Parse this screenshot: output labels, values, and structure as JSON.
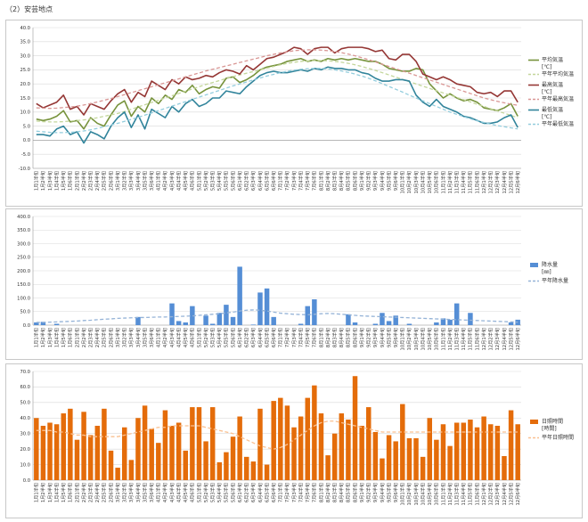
{
  "page": {
    "title": "（2）安芸地点"
  },
  "weeks": [
    "1月1半旬",
    "1月2半旬",
    "1月3半旬",
    "1月4半旬",
    "1月5半旬",
    "1月6半旬",
    "2月1半旬",
    "2月2半旬",
    "2月3半旬",
    "2月4半旬",
    "2月5半旬",
    "2月6半旬",
    "3月1半旬",
    "3月2半旬",
    "3月3半旬",
    "3月4半旬",
    "3月5半旬",
    "3月6半旬",
    "4月1半旬",
    "4月2半旬",
    "4月3半旬",
    "4月4半旬",
    "4月5半旬",
    "4月6半旬",
    "5月1半旬",
    "5月2半旬",
    "5月3半旬",
    "5月4半旬",
    "5月5半旬",
    "5月6半旬",
    "6月1半旬",
    "6月2半旬",
    "6月3半旬",
    "6月4半旬",
    "6月5半旬",
    "6月6半旬",
    "7月1半旬",
    "7月2半旬",
    "7月3半旬",
    "7月4半旬",
    "7月5半旬",
    "7月6半旬",
    "8月1半旬",
    "8月2半旬",
    "8月3半旬",
    "8月4半旬",
    "8月5半旬",
    "8月6半旬",
    "9月1半旬",
    "9月2半旬",
    "9月3半旬",
    "9月4半旬",
    "9月5半旬",
    "9月6半旬",
    "10月1半旬",
    "10月2半旬",
    "10月3半旬",
    "10月4半旬",
    "10月5半旬",
    "10月6半旬",
    "11月1半旬",
    "11月2半旬",
    "11月3半旬",
    "11月4半旬",
    "11月5半旬",
    "11月6半旬",
    "12月1半旬",
    "12月2半旬",
    "12月3半旬",
    "12月4半旬",
    "12月5半旬",
    "12月6半旬"
  ],
  "chart_data": [
    {
      "type": "line",
      "title": "",
      "ylim": [
        -10,
        40
      ],
      "yticks": [
        "-10.0",
        "-5.0",
        "0.0",
        "5.0",
        "10.0",
        "15.0",
        "20.0",
        "25.0",
        "30.0",
        "35.0",
        "40.0"
      ],
      "grid": true,
      "legend": "right",
      "series": [
        {
          "name": "平均気温",
          "unit": "[℃]",
          "color": "#77933c",
          "dashed": false,
          "values": [
            7.5,
            7,
            7.5,
            8.5,
            10.5,
            6.5,
            7,
            4,
            8,
            6,
            5,
            9,
            12.5,
            14,
            8.5,
            12,
            10,
            15,
            13,
            16,
            14.5,
            18,
            17,
            19.5,
            16.5,
            18,
            19,
            18.5,
            22,
            22.5,
            20.5,
            21.5,
            23,
            25,
            26,
            26.5,
            27,
            28,
            28.5,
            29,
            28,
            28.5,
            28,
            29,
            28.5,
            29,
            28.5,
            29,
            28.5,
            28,
            28,
            27,
            25.5,
            25,
            24.5,
            24.5,
            25.5,
            25,
            20,
            17.5,
            15,
            16.5,
            15,
            14,
            14.5,
            13.5,
            11.5,
            11,
            10.5,
            11.5,
            13,
            8.5
          ]
        },
        {
          "name": "平年平均気温",
          "unit": "",
          "color": "#c3d69b",
          "dashed": true,
          "values": [
            6.8,
            6.6,
            6.5,
            6.5,
            6.6,
            6.8,
            7,
            7.2,
            7.5,
            8,
            8.5,
            9,
            9.5,
            10.2,
            11,
            11.8,
            12.6,
            13.4,
            14.2,
            15,
            15.8,
            16.6,
            17.4,
            18.2,
            19,
            19.8,
            20.5,
            21.2,
            21.9,
            22.6,
            23.2,
            23.8,
            24.4,
            25,
            25.6,
            26.2,
            26.8,
            27.3,
            27.7,
            28,
            28.2,
            28.3,
            28.3,
            28.2,
            28,
            27.7,
            27.3,
            26.8,
            26.2,
            25.5,
            24.8,
            24,
            23.2,
            22.4,
            21.6,
            20.8,
            20,
            19.2,
            18.4,
            17.6,
            16.8,
            16,
            15.2,
            14.4,
            13.6,
            12.8,
            12,
            11.2,
            10.4,
            9.6,
            8.8,
            8
          ]
        },
        {
          "name": "最高気温",
          "unit": "[℃]",
          "color": "#953735",
          "dashed": false,
          "values": [
            13,
            11.5,
            12.5,
            13.5,
            16,
            11,
            12,
            9,
            13,
            12,
            11,
            14,
            16.5,
            18,
            13.5,
            17,
            15.5,
            21,
            19.5,
            18,
            21.5,
            20,
            22.5,
            21.5,
            22,
            23,
            22.5,
            24,
            25,
            24.5,
            23.5,
            26.5,
            25,
            27,
            29,
            29.5,
            30.5,
            31.5,
            33,
            32.5,
            30.5,
            32.5,
            33,
            33,
            31,
            32.5,
            33,
            33,
            33,
            32.5,
            31.5,
            32,
            29,
            28.5,
            30.5,
            30.5,
            28,
            23.5,
            22.5,
            21.5,
            22.5,
            21.5,
            20,
            19.5,
            19,
            17,
            16.5,
            17,
            15.5,
            17.5,
            17.5,
            13.5
          ]
        },
        {
          "name": "平年最高気温",
          "unit": "",
          "color": "#d99694",
          "dashed": true,
          "values": [
            11.5,
            11.4,
            11.3,
            11.4,
            11.6,
            11.8,
            12.1,
            12.5,
            13,
            13.6,
            14.2,
            14.8,
            15.5,
            16.2,
            16.9,
            17.6,
            18.3,
            19,
            19.7,
            20.4,
            21.1,
            21.8,
            22.5,
            23.2,
            23.9,
            24.6,
            25.2,
            25.8,
            26.4,
            27,
            27.6,
            28.2,
            28.8,
            29.4,
            30,
            30.5,
            31,
            31.4,
            31.8,
            32,
            32.1,
            32.1,
            32,
            31.8,
            31.5,
            31.1,
            30.6,
            30,
            29.3,
            28.6,
            27.8,
            27,
            26.2,
            25.4,
            24.6,
            23.8,
            23,
            22.2,
            21.4,
            20.6,
            19.8,
            19,
            18.2,
            17.4,
            16.6,
            15.8,
            15,
            14.4,
            13.8,
            13.3,
            12.8,
            12.4
          ]
        },
        {
          "name": "最低気温",
          "unit": "[℃]",
          "color": "#31849b",
          "dashed": false,
          "values": [
            2,
            2,
            1.5,
            4,
            5,
            2,
            3,
            -1,
            3,
            2,
            0.5,
            5,
            8,
            10,
            4.5,
            9,
            4,
            11,
            9.5,
            8,
            12,
            10,
            13,
            14.5,
            12,
            13,
            15,
            15,
            17.5,
            17,
            16.5,
            19,
            21,
            23,
            24,
            24.5,
            24,
            24,
            24.5,
            25,
            24.5,
            25.5,
            25,
            26,
            25.5,
            25.5,
            25,
            25,
            24,
            23.5,
            22,
            21,
            21,
            21.5,
            21.5,
            21,
            16,
            13.5,
            12,
            14.5,
            12,
            11,
            10,
            8.5,
            8,
            7,
            6,
            6,
            6.5,
            8,
            9,
            4.5
          ]
        },
        {
          "name": "平年最低気温",
          "unit": "",
          "color": "#93cddd",
          "dashed": true,
          "values": [
            3.2,
            3,
            2.8,
            2.7,
            2.7,
            2.8,
            3,
            3.3,
            3.7,
            4.2,
            4.8,
            5.4,
            6,
            6.7,
            7.4,
            8.1,
            8.9,
            9.7,
            10.5,
            11.3,
            12.1,
            12.9,
            13.7,
            14.5,
            15.3,
            16.1,
            16.9,
            17.7,
            18.5,
            19.3,
            20,
            20.7,
            21.4,
            22.1,
            22.8,
            23.4,
            24,
            24.5,
            24.9,
            25.2,
            25.4,
            25.5,
            25.5,
            25.3,
            25,
            24.6,
            24.1,
            23.5,
            22.8,
            22,
            21.1,
            20.1,
            19.1,
            18.1,
            17.1,
            16,
            15,
            14,
            13,
            12,
            11,
            10,
            9.2,
            8.4,
            7.6,
            6.9,
            6.3,
            5.7,
            5.2,
            4.8,
            4.4,
            4
          ]
        }
      ]
    },
    {
      "type": "bar",
      "title": "",
      "ylim": [
        0,
        400
      ],
      "yticks": [
        "0.0",
        "50.0",
        "100.0",
        "150.0",
        "200.0",
        "250.0",
        "300.0",
        "350.0",
        "400.0"
      ],
      "grid": true,
      "legend": "right",
      "series": [
        {
          "name": "降水量",
          "unit": "[㎜]",
          "color": "#558ed5",
          "kind": "bar",
          "values": [
            10,
            12,
            0,
            5,
            0,
            0,
            0,
            0,
            0,
            0,
            0,
            0,
            0,
            0,
            0,
            30,
            0,
            0,
            0,
            0,
            80,
            15,
            10,
            70,
            0,
            35,
            5,
            45,
            75,
            30,
            215,
            0,
            2,
            120,
            135,
            30,
            0,
            0,
            0,
            5,
            70,
            95,
            0,
            0,
            0,
            0,
            40,
            10,
            0,
            0,
            5,
            45,
            15,
            35,
            0,
            5,
            0,
            0,
            0,
            10,
            25,
            20,
            80,
            0,
            45,
            0,
            0,
            0,
            0,
            0,
            10,
            20
          ]
        },
        {
          "name": "平年降水量",
          "unit": "",
          "color": "#95b3d7",
          "kind": "line",
          "dashed": true,
          "values": [
            10,
            10,
            11,
            12,
            13,
            14,
            15,
            17,
            18,
            20,
            22,
            23,
            25,
            26,
            27,
            28,
            28,
            29,
            30,
            30,
            31,
            32,
            33,
            34,
            36,
            38,
            40,
            42,
            45,
            48,
            52,
            55,
            56,
            55,
            52,
            48,
            44,
            42,
            40,
            39,
            38,
            40,
            42,
            43,
            42,
            40,
            38,
            36,
            34,
            33,
            32,
            31,
            30,
            29,
            28,
            27,
            26,
            25,
            24,
            23,
            22,
            21,
            20,
            19,
            18,
            17,
            16,
            15,
            14,
            13,
            12,
            11
          ]
        }
      ]
    },
    {
      "type": "bar",
      "title": "",
      "ylim": [
        0,
        70
      ],
      "yticks": [
        "0.0",
        "10.0",
        "20.0",
        "30.0",
        "40.0",
        "50.0",
        "60.0",
        "70.0"
      ],
      "grid": true,
      "legend": "right",
      "series": [
        {
          "name": "日照時間",
          "unit": "[時間]",
          "color": "#e46c0a",
          "kind": "bar",
          "values": [
            40,
            35,
            37,
            36,
            43,
            46,
            26,
            44,
            29,
            35,
            46,
            19,
            8,
            34,
            13,
            40,
            48,
            33,
            24,
            45,
            35,
            37,
            19,
            47,
            47,
            25,
            47,
            11.5,
            18,
            28,
            41,
            15,
            12,
            46,
            10,
            51,
            53,
            48,
            34,
            41,
            53,
            61,
            43,
            16,
            30,
            43,
            39,
            67,
            35,
            47,
            31,
            14,
            29,
            25,
            49,
            27,
            27,
            15,
            40,
            26,
            36,
            22,
            37,
            37,
            39,
            34,
            41,
            36,
            35,
            15.5,
            45,
            36
          ]
        },
        {
          "name": "平年日照時間",
          "unit": "",
          "color": "#fac090",
          "kind": "line",
          "dashed": true,
          "values": [
            32,
            32,
            32,
            31,
            31,
            30,
            29,
            29,
            28,
            28,
            28,
            28,
            28,
            29,
            30,
            31,
            32,
            33,
            34,
            34,
            35,
            35,
            35,
            35,
            35,
            34,
            33,
            32,
            31,
            30,
            28,
            26,
            24,
            22,
            21,
            20,
            21,
            23,
            26,
            29,
            32,
            35,
            37,
            38,
            38,
            37,
            36,
            35,
            34,
            33,
            32,
            31,
            31,
            31,
            31,
            31,
            31,
            31,
            31,
            31,
            31,
            31,
            31,
            31,
            31,
            31,
            31,
            31,
            31,
            31,
            31,
            31
          ]
        }
      ]
    }
  ]
}
